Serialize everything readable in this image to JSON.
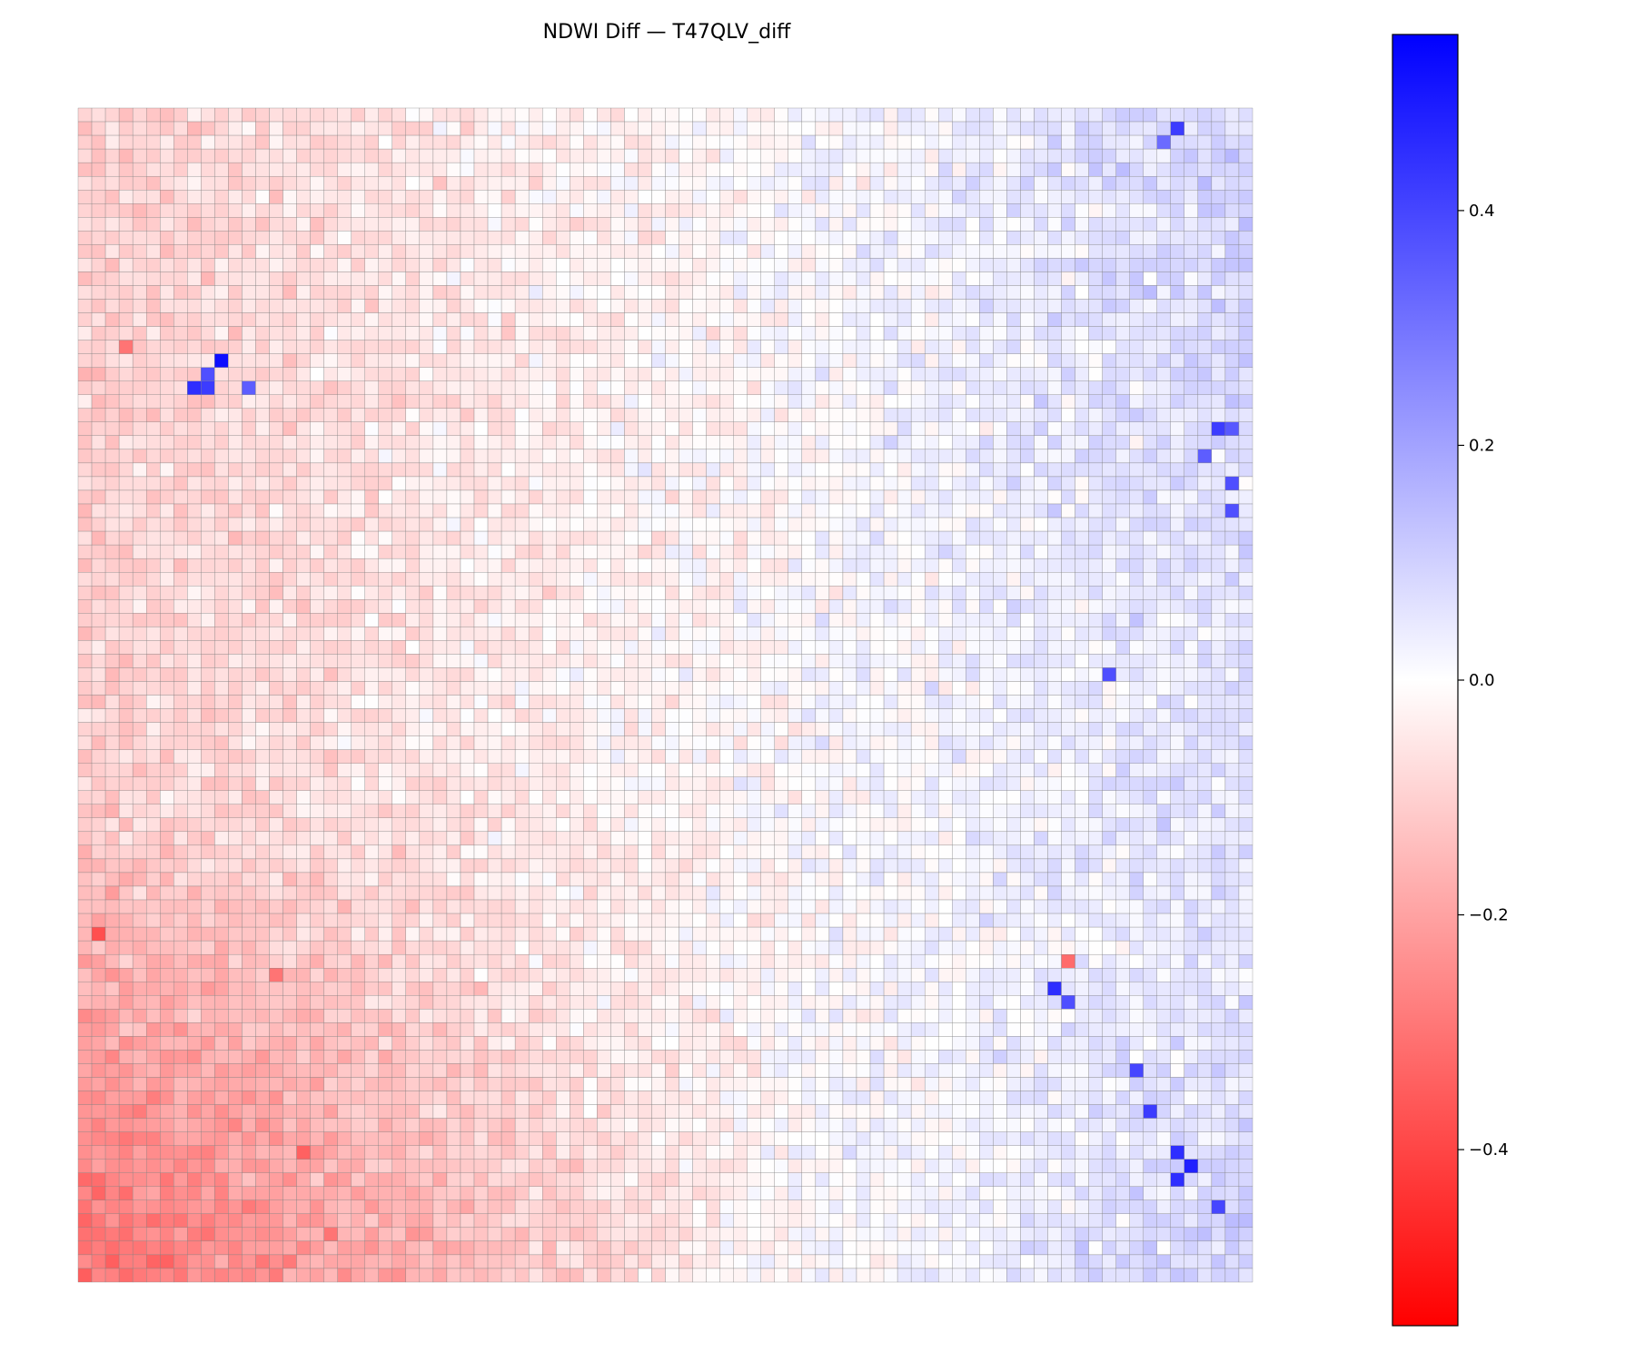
{
  "chart_data": {
    "type": "heatmap",
    "title": "NDWI Diff — T47QLV_diff",
    "xlabel": "",
    "ylabel": "",
    "grid": true,
    "grid_rows": 86,
    "grid_cols": 86,
    "colormap": "bwr_r",
    "colormap_stops": [
      "#ff0000",
      "#ffffff",
      "#0000ff"
    ],
    "value_range": [
      -0.55,
      0.55
    ],
    "colorbar": {
      "position": "right",
      "ticks": [
        0.4,
        0.2,
        0.0,
        -0.2,
        -0.4
      ],
      "tick_labels": [
        "0.4",
        "0.2",
        "0.0",
        "−0.2",
        "−0.4"
      ]
    },
    "regions": {
      "left_half_mean": -0.1,
      "lower_left_mean": -0.22,
      "right_half_mean": 0.06,
      "upper_right_mean": 0.1,
      "lower_right_mean": 0.1
    },
    "hotspots": [
      {
        "row": 18,
        "col": 10,
        "value": 0.52
      },
      {
        "row": 20,
        "col": 8,
        "value": 0.45
      },
      {
        "row": 20,
        "col": 9,
        "value": 0.42
      },
      {
        "row": 19,
        "col": 9,
        "value": 0.38
      },
      {
        "row": 20,
        "col": 12,
        "value": 0.35
      },
      {
        "row": 1,
        "col": 80,
        "value": 0.42
      },
      {
        "row": 2,
        "col": 79,
        "value": 0.32
      },
      {
        "row": 23,
        "col": 83,
        "value": 0.42
      },
      {
        "row": 23,
        "col": 84,
        "value": 0.36
      },
      {
        "row": 25,
        "col": 82,
        "value": 0.35
      },
      {
        "row": 27,
        "col": 84,
        "value": 0.38
      },
      {
        "row": 29,
        "col": 84,
        "value": 0.38
      },
      {
        "row": 41,
        "col": 75,
        "value": 0.38
      },
      {
        "row": 64,
        "col": 71,
        "value": 0.45
      },
      {
        "row": 65,
        "col": 72,
        "value": 0.38
      },
      {
        "row": 70,
        "col": 77,
        "value": 0.4
      },
      {
        "row": 73,
        "col": 78,
        "value": 0.42
      },
      {
        "row": 76,
        "col": 80,
        "value": 0.45
      },
      {
        "row": 77,
        "col": 81,
        "value": 0.48
      },
      {
        "row": 78,
        "col": 80,
        "value": 0.45
      },
      {
        "row": 80,
        "col": 83,
        "value": 0.4
      },
      {
        "row": 17,
        "col": 3,
        "value": -0.3
      },
      {
        "row": 60,
        "col": 1,
        "value": -0.38
      },
      {
        "row": 63,
        "col": 14,
        "value": -0.3
      },
      {
        "row": 62,
        "col": 72,
        "value": -0.32
      },
      {
        "row": 76,
        "col": 16,
        "value": -0.34
      },
      {
        "row": 82,
        "col": 18,
        "value": -0.3
      }
    ]
  }
}
